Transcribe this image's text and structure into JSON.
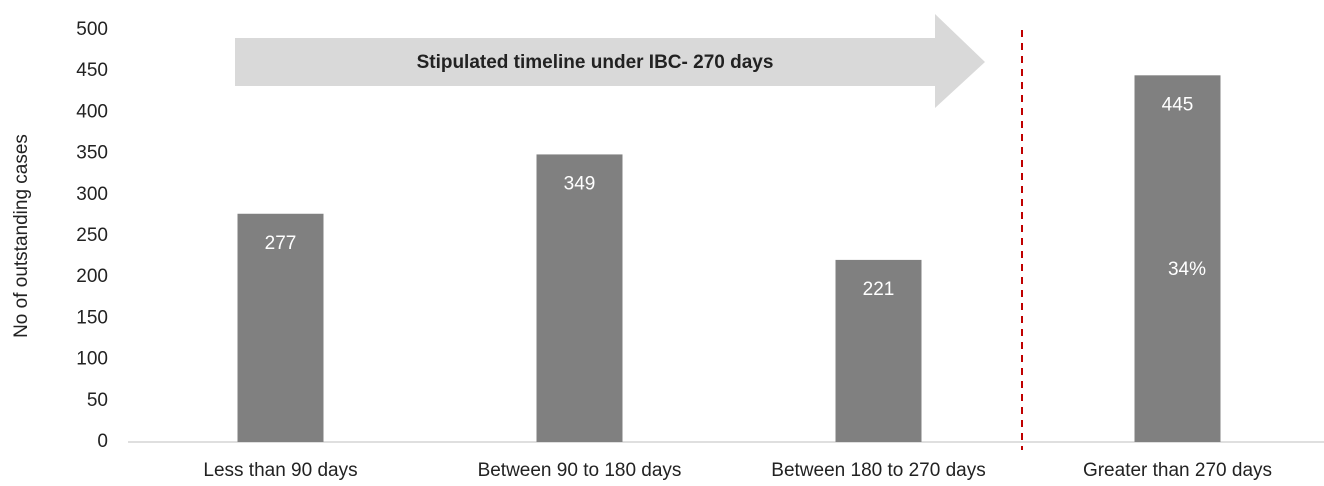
{
  "chart_data": {
    "type": "bar",
    "ylabel": "No of outstanding cases",
    "categories": [
      "Less than 90 days",
      "Between 90 to 180 days",
      "Between 180 to 270 days",
      "Greater than 270 days"
    ],
    "values": [
      277,
      349,
      221,
      445
    ],
    "color": "#808080",
    "ylim": [
      0,
      500
    ],
    "yticks": [
      0,
      50,
      100,
      150,
      200,
      250,
      300,
      350,
      400,
      450,
      500
    ],
    "annotations": [
      "Stipulated timeline under IBC- 270 days",
      "34%"
    ]
  }
}
